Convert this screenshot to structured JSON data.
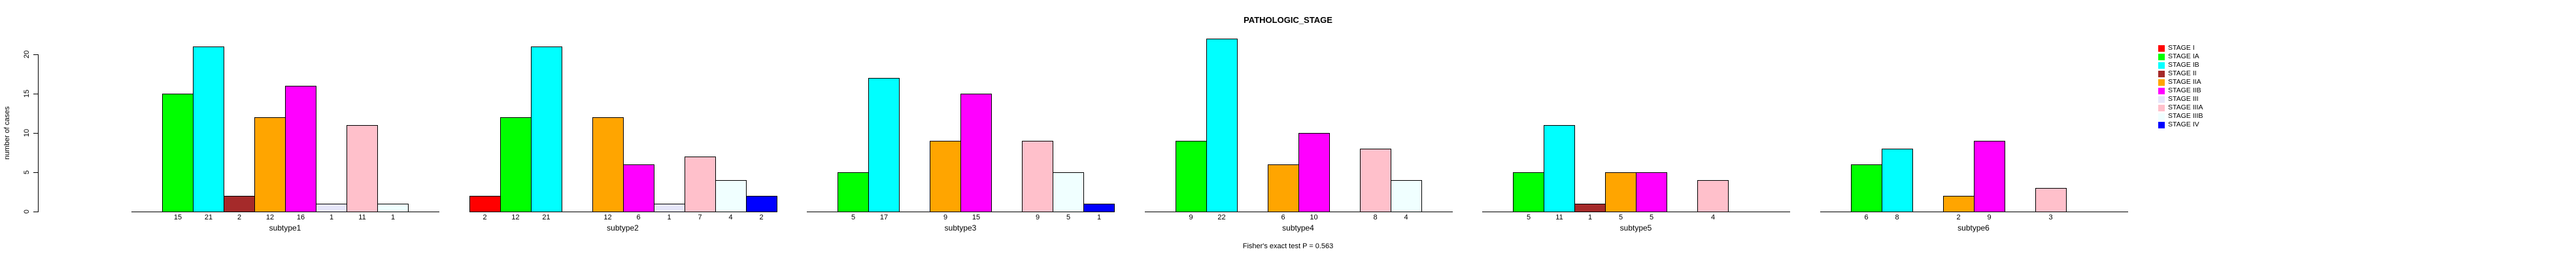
{
  "title": "PATHOLOGIC_STAGE",
  "footer_note": "Fisher's exact test P = 0.563",
  "chart_data": {
    "type": "bar",
    "title": "PATHOLOGIC_STAGE",
    "xlabel": "",
    "ylabel": "number of cases",
    "ylim": [
      0,
      20
    ],
    "yticks": [
      0,
      5,
      10,
      15,
      20
    ],
    "grid": false,
    "legend_position": "right",
    "annotation": "Fisher's exact test P = 0.563",
    "series": [
      {
        "name": "STAGE I",
        "color": "#FF0000"
      },
      {
        "name": "STAGE IA",
        "color": "#00FF00"
      },
      {
        "name": "STAGE IB",
        "color": "#00FFFF"
      },
      {
        "name": "STAGE II",
        "color": "#A52A2A"
      },
      {
        "name": "STAGE IIA",
        "color": "#FFA500"
      },
      {
        "name": "STAGE IIB",
        "color": "#FF00FF"
      },
      {
        "name": "STAGE III",
        "color": "#E6E6FA"
      },
      {
        "name": "STAGE IIIA",
        "color": "#FFC0CB"
      },
      {
        "name": "STAGE IIIB",
        "color": "#F0FFFF"
      },
      {
        "name": "STAGE IV",
        "color": "#0000FF"
      }
    ],
    "categories": [
      "subtype1",
      "subtype2",
      "subtype3",
      "subtype4",
      "subtype5",
      "subtype6"
    ],
    "groups": [
      {
        "label": "subtype1",
        "values": [
          0,
          15,
          21,
          2,
          12,
          16,
          1,
          11,
          1,
          0
        ]
      },
      {
        "label": "subtype2",
        "values": [
          2,
          12,
          21,
          0,
          12,
          6,
          1,
          7,
          4,
          2
        ]
      },
      {
        "label": "subtype3",
        "values": [
          0,
          5,
          17,
          0,
          9,
          15,
          0,
          9,
          5,
          1
        ]
      },
      {
        "label": "subtype4",
        "values": [
          0,
          9,
          22,
          0,
          6,
          10,
          0,
          8,
          4,
          0
        ]
      },
      {
        "label": "subtype5",
        "values": [
          0,
          5,
          11,
          1,
          5,
          5,
          0,
          4,
          0,
          0
        ]
      },
      {
        "label": "subtype6",
        "values": [
          0,
          6,
          8,
          0,
          2,
          9,
          0,
          3,
          0,
          0
        ]
      }
    ]
  }
}
